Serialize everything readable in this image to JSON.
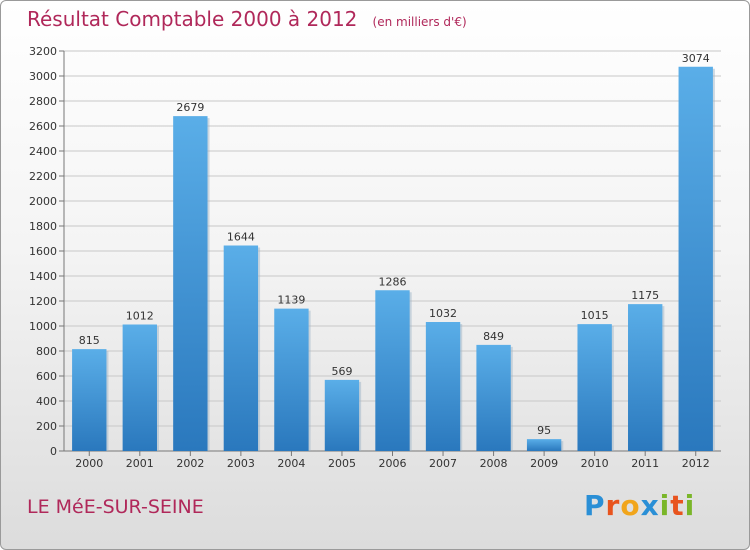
{
  "chart_data": {
    "type": "bar",
    "title": "Résultat Comptable 2000 à 2012",
    "subtitle": "(en milliers d'€)",
    "xlabel": "",
    "ylabel": "",
    "categories": [
      "2000",
      "2001",
      "2002",
      "2003",
      "2004",
      "2005",
      "2006",
      "2007",
      "2008",
      "2009",
      "2010",
      "2011",
      "2012"
    ],
    "values": [
      815,
      1012,
      2679,
      1644,
      1139,
      569,
      1286,
      1032,
      849,
      95,
      1015,
      1175,
      3074
    ],
    "ylim": [
      0,
      3200
    ],
    "yticks": [
      0,
      200,
      400,
      600,
      800,
      1000,
      1200,
      1400,
      1600,
      1800,
      2000,
      2200,
      2400,
      2600,
      2800,
      3000,
      3200
    ],
    "grid": true,
    "bar_color": "#3b8fd4"
  },
  "footer": {
    "place": "LE MéE-SUR-SEINE",
    "logo_letters": [
      "P",
      "r",
      "o",
      "x",
      "i",
      "t",
      "i"
    ],
    "logo_colors": [
      "#2a8fd6",
      "#e8541e",
      "#f1a51b",
      "#2a8fd6",
      "#7ab629",
      "#e8541e",
      "#7ab629"
    ]
  }
}
